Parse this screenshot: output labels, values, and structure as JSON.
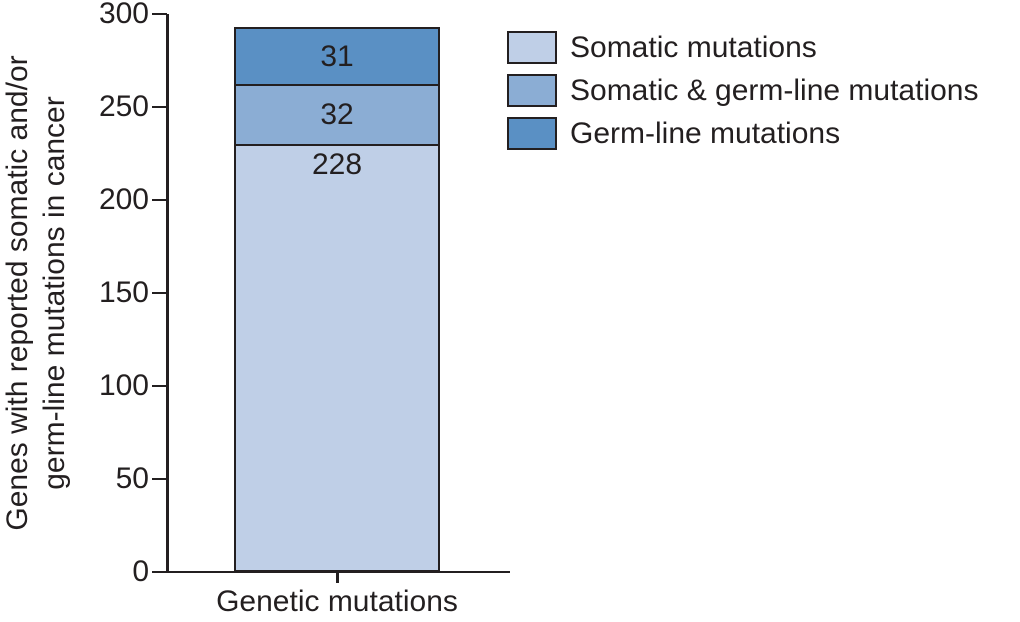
{
  "figure": {
    "background": "#ffffff",
    "text_color": "#231f20",
    "axis_color": "#231f20"
  },
  "y_axis": {
    "title_line1": "Genes with reported somatic and/or",
    "title_line2": "germ-line mutations in cancer"
  },
  "x_axis": {
    "category_label": "Genetic mutations"
  },
  "legend": {
    "position": "top-right",
    "items": [
      {
        "label": "Somatic mutations",
        "color": "#bfcfe7"
      },
      {
        "label": "Somatic & germ-line mutations",
        "color": "#8badd4"
      },
      {
        "label": "Germ-line mutations",
        "color": "#5a90c4"
      }
    ]
  },
  "chart_data": {
    "type": "bar",
    "stacked": true,
    "title": "",
    "xlabel": "",
    "ylabel": "Genes with reported somatic and/or germ-line mutations in cancer",
    "categories": [
      "Genetic mutations"
    ],
    "series": [
      {
        "name": "Somatic mutations",
        "values": [
          228
        ],
        "color": "#bfcfe7"
      },
      {
        "name": "Somatic & germ-line mutations",
        "values": [
          32
        ],
        "color": "#8badd4"
      },
      {
        "name": "Germ-line mutations",
        "values": [
          31
        ],
        "color": "#5a90c4"
      }
    ],
    "stack_total": 291,
    "ylim": [
      0,
      300
    ],
    "yticks": [
      0,
      50,
      100,
      150,
      200,
      250,
      300
    ],
    "grid": false,
    "legend_position": "top-right"
  }
}
